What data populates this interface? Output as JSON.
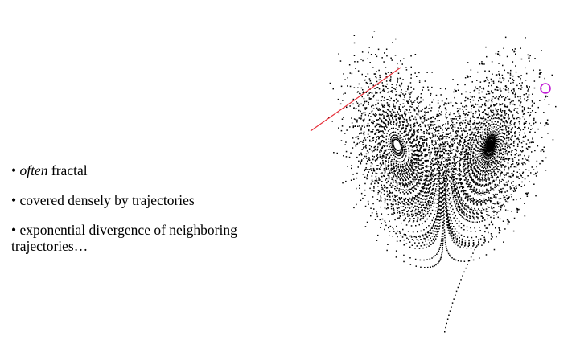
{
  "bullets": [
    {
      "marker": "•",
      "emph": "often",
      "rest": " fractal"
    },
    {
      "marker": "•",
      "emph": "",
      "rest": " covered densely by trajectories"
    },
    {
      "marker": "•",
      "emph": "",
      "rest": " exponential divergence of neighboring trajectories…"
    }
  ],
  "figure": {
    "subject": "Lorenz attractor",
    "point_color": "#000000",
    "line_color": "#e8303a",
    "marker_color": "#c21ad6"
  }
}
